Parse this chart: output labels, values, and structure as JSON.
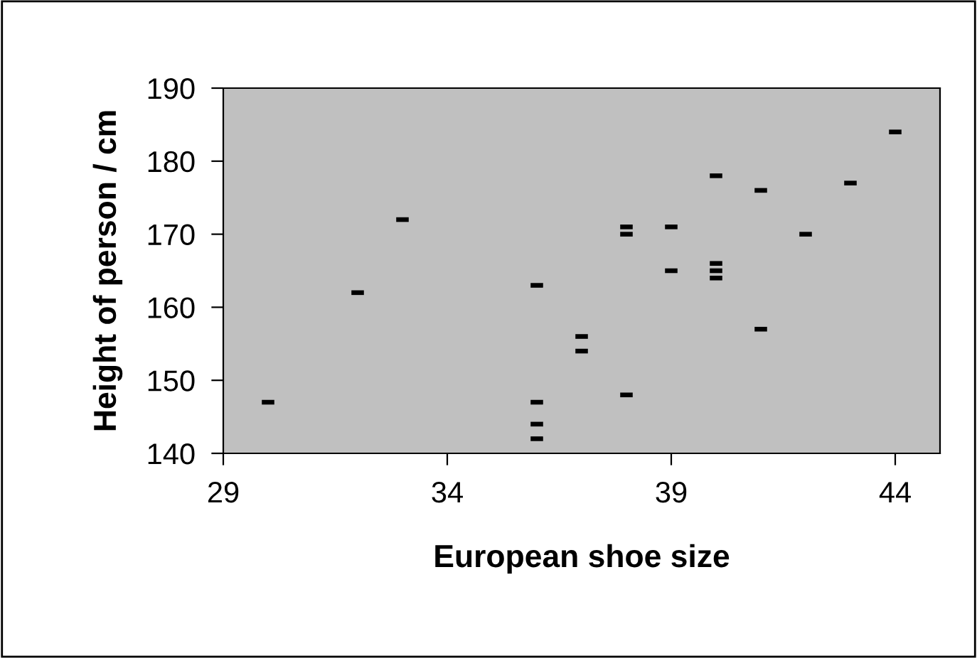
{
  "chart_data": {
    "type": "scatter",
    "xlabel": "European shoe size",
    "ylabel": "Height of person / cm",
    "x": [
      30,
      32,
      33,
      36,
      36,
      36,
      36,
      37,
      37,
      38,
      38,
      38,
      39,
      39,
      40,
      40,
      40,
      40,
      41,
      41,
      42,
      43,
      44
    ],
    "series": [
      {
        "color": "#000000",
        "values": [
          147,
          162,
          172,
          163,
          147,
          144,
          142,
          156,
          154,
          171,
          170,
          148,
          171,
          165,
          178,
          166,
          165,
          164,
          176,
          157,
          170,
          177,
          184
        ]
      }
    ],
    "xlim": [
      29,
      45
    ],
    "xticks": [
      29,
      34,
      39,
      44
    ],
    "ylim": [
      140,
      190
    ],
    "yticks": [
      140,
      150,
      160,
      170,
      180,
      190
    ],
    "grid": false
  }
}
